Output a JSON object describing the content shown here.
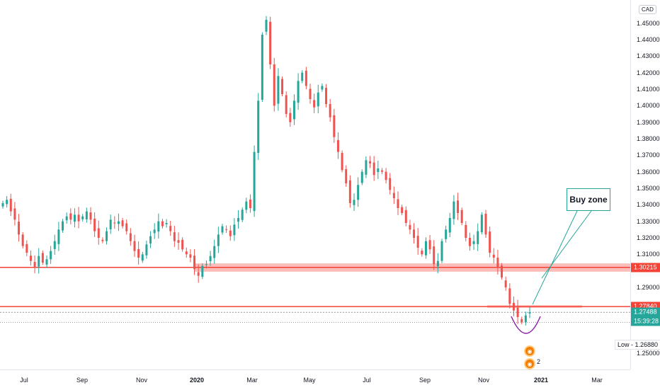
{
  "currency": "CAD",
  "chart_data": {
    "type": "candlestick",
    "xlabel": "",
    "ylabel": "",
    "ylim": [
      1.245,
      1.458
    ],
    "price_ticks": [
      "1.45000",
      "1.44000",
      "1.43000",
      "1.42000",
      "1.41000",
      "1.40000",
      "1.39000",
      "1.38000",
      "1.37000",
      "1.36000",
      "1.35000",
      "1.34000",
      "1.33000",
      "1.32000",
      "1.31000",
      "1.29000",
      "1.25000"
    ],
    "time_ticks": [
      {
        "label": "Jul",
        "bold": false
      },
      {
        "label": "Sep",
        "bold": false
      },
      {
        "label": "Nov",
        "bold": false
      },
      {
        "label": "2020",
        "bold": true
      },
      {
        "label": "Mar",
        "bold": false
      },
      {
        "label": "May",
        "bold": false
      },
      {
        "label": "Jul",
        "bold": false
      },
      {
        "label": "Sep",
        "bold": false
      },
      {
        "label": "Nov",
        "bold": false
      },
      {
        "label": "2021",
        "bold": true
      },
      {
        "label": "Mar",
        "bold": false
      }
    ],
    "closes": [
      1.341,
      1.343,
      1.336,
      1.331,
      1.322,
      1.315,
      1.311,
      1.306,
      1.302,
      1.309,
      1.305,
      1.307,
      1.312,
      1.318,
      1.325,
      1.33,
      1.333,
      1.331,
      1.334,
      1.33,
      1.333,
      1.336,
      1.331,
      1.324,
      1.32,
      1.318,
      1.324,
      1.331,
      1.329,
      1.33,
      1.327,
      1.324,
      1.318,
      1.312,
      1.308,
      1.31,
      1.316,
      1.321,
      1.325,
      1.33,
      1.327,
      1.329,
      1.324,
      1.318,
      1.317,
      1.313,
      1.31,
      1.308,
      1.301,
      1.297,
      1.303,
      1.304,
      1.309,
      1.315,
      1.322,
      1.327,
      1.325,
      1.321,
      1.328,
      1.332,
      1.337,
      1.342,
      1.338,
      1.372,
      1.403,
      1.443,
      1.452,
      1.425,
      1.4,
      1.418,
      1.407,
      1.395,
      1.39,
      1.403,
      1.415,
      1.42,
      1.412,
      1.404,
      1.399,
      1.408,
      1.412,
      1.401,
      1.393,
      1.381,
      1.372,
      1.361,
      1.353,
      1.341,
      1.343,
      1.352,
      1.36,
      1.367,
      1.365,
      1.358,
      1.362,
      1.36,
      1.355,
      1.349,
      1.344,
      1.338,
      1.335,
      1.329,
      1.325,
      1.32,
      1.314,
      1.31,
      1.318,
      1.313,
      1.304,
      1.306,
      1.318,
      1.325,
      1.332,
      1.342,
      1.335,
      1.329,
      1.32,
      1.315,
      1.318,
      1.324,
      1.334,
      1.322,
      1.311,
      1.308,
      1.302,
      1.296,
      1.29,
      1.28,
      1.276,
      1.272,
      1.269,
      1.273,
      1.2749
    ],
    "levels": [
      {
        "label": "1.30215",
        "value": 1.30215,
        "color": "#f44336"
      },
      {
        "label": "1.27840",
        "value": 1.2784,
        "color": "#f44336"
      },
      {
        "label": "1.27488",
        "value": 1.27488,
        "color": "#26a69a"
      }
    ],
    "countdown": "15:39:28",
    "low_label": "Low - 1.26880",
    "low_value": 1.2688,
    "annotation": "Buy zone",
    "event_label": "2"
  },
  "colors": {
    "up": "#26a69a",
    "down": "#ef5350",
    "level": "#f44336",
    "zone": "rgba(244,67,54,0.35)",
    "curve": "#8e24aa"
  }
}
